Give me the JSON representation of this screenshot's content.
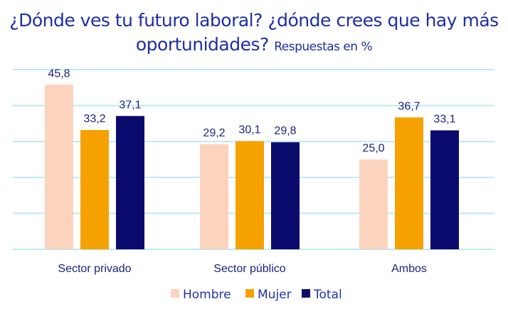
{
  "chart_data": {
    "type": "bar",
    "title": "¿Dónde ves tu futuro laboral? ¿dónde crees que hay más oportunidades?",
    "subtitle": "Respuestas en %",
    "categories": [
      "Sector privado",
      "Sector público",
      "Ambos"
    ],
    "series": [
      {
        "name": "Hombre",
        "values": [
          45.8,
          29.2,
          25.0
        ],
        "labels": [
          "45,8",
          "29,2",
          "25,0"
        ],
        "color": "#fcd3bd"
      },
      {
        "name": "Mujer",
        "values": [
          33.2,
          30.1,
          36.7
        ],
        "labels": [
          "33,2",
          "30,1",
          "36,7"
        ],
        "color": "#f5a100"
      },
      {
        "name": "Total",
        "values": [
          37.1,
          29.8,
          33.1
        ],
        "labels": [
          "37,1",
          "29,8",
          "33,1"
        ],
        "color": "#0b0b6e"
      }
    ],
    "ylim": [
      0,
      50
    ],
    "grid": true,
    "gridline_color": "#bdeaf3",
    "legend_position": "bottom",
    "xlabel": "",
    "ylabel": ""
  }
}
